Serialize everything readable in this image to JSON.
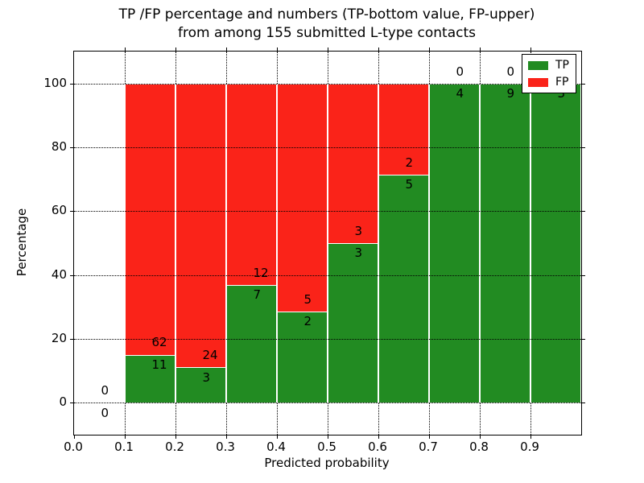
{
  "chart_data": {
    "type": "bar",
    "stacked": true,
    "title_line1": "TP /FP percentage and numbers (TP-bottom value, FP-upper)",
    "title_line2": "from among 155 submitted L-type contacts",
    "xlabel": "Predicted probability",
    "ylabel": "Percentage",
    "total_submitted": 155,
    "xlim": [
      0.0,
      1.0
    ],
    "ylim": [
      -10,
      110
    ],
    "yticks": [
      0,
      20,
      40,
      60,
      80,
      100
    ],
    "xtick_labels": [
      "0.0",
      "0.1",
      "0.2",
      "0.3",
      "0.4",
      "0.5",
      "0.6",
      "0.7",
      "0.8",
      "0.9"
    ],
    "xgridlines": [
      0.1,
      0.2,
      0.3,
      0.4,
      0.5,
      0.6,
      0.7,
      0.8,
      0.9
    ],
    "grid_style": "dotted",
    "colors": {
      "tp": "#228b22",
      "fp": "#fa2319"
    },
    "legend": {
      "position": "upper right",
      "items": [
        {
          "label": "TP",
          "color": "#228b22"
        },
        {
          "label": "FP",
          "color": "#fa2319"
        }
      ]
    },
    "bins": [
      {
        "range": "0.0-0.1",
        "start": 0.0,
        "tp": 0,
        "fp": 0
      },
      {
        "range": "0.1-0.2",
        "start": 0.1,
        "tp": 11,
        "fp": 62
      },
      {
        "range": "0.2-0.3",
        "start": 0.2,
        "tp": 3,
        "fp": 24
      },
      {
        "range": "0.3-0.4",
        "start": 0.3,
        "tp": 7,
        "fp": 12
      },
      {
        "range": "0.4-0.5",
        "start": 0.4,
        "tp": 2,
        "fp": 5
      },
      {
        "range": "0.5-0.6",
        "start": 0.5,
        "tp": 3,
        "fp": 3
      },
      {
        "range": "0.6-0.7",
        "start": 0.6,
        "tp": 5,
        "fp": 2
      },
      {
        "range": "0.7-0.8",
        "start": 0.7,
        "tp": 4,
        "fp": 0
      },
      {
        "range": "0.8-0.9",
        "start": 0.8,
        "tp": 9,
        "fp": 0
      },
      {
        "range": "0.9-1.0",
        "start": 0.9,
        "tp": 3,
        "fp": 0
      }
    ]
  }
}
